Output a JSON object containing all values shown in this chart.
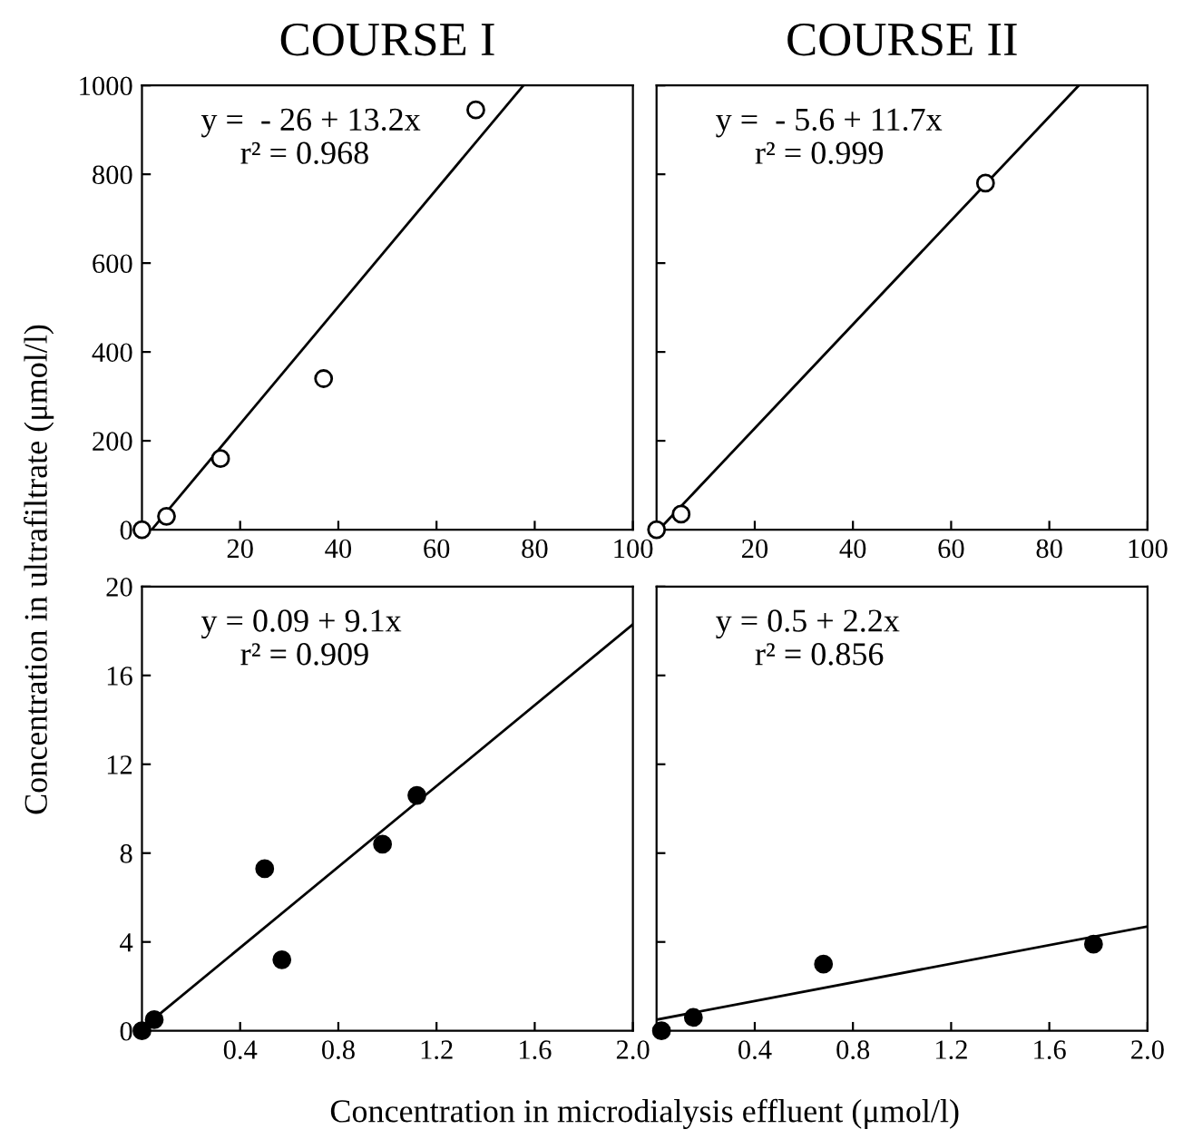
{
  "chart_data": [
    {
      "type": "scatter",
      "title": "COURSE I",
      "ylabel": "Concentration in ultrafiltrate (μmol/l)",
      "xlim": [
        0,
        100
      ],
      "ylim": [
        0,
        1000
      ],
      "xticks": [
        20,
        40,
        60,
        80,
        100
      ],
      "yticks": [
        0,
        200,
        400,
        600,
        800,
        1000
      ],
      "annotations": [
        "y =  - 26 + 13.2x",
        "r² = 0.968"
      ],
      "series": [
        {
          "color": "#ffffff",
          "marker": "circle",
          "x": [
            0,
            5,
            16,
            37,
            68
          ],
          "values": [
            0,
            30,
            160,
            340,
            945
          ]
        },
        {
          "type": "line",
          "color": "#000000",
          "x": [
            2,
            77.7
          ],
          "values": [
            0,
            1000
          ]
        }
      ]
    },
    {
      "type": "scatter",
      "title": "COURSE II",
      "tick_labels": "x",
      "xlim": [
        0,
        100
      ],
      "ylim": [
        0,
        1000
      ],
      "xticks": [
        20,
        40,
        60,
        80,
        100
      ],
      "yticks": [
        0,
        200,
        400,
        600,
        800,
        1000
      ],
      "annotations": [
        "y =  - 5.6 + 11.7x",
        "r² = 0.999"
      ],
      "series": [
        {
          "color": "#ffffff",
          "marker": "circle",
          "x": [
            0,
            5,
            67
          ],
          "values": [
            0,
            35,
            780
          ]
        },
        {
          "type": "line",
          "color": "#000000",
          "x": [
            0.5,
            86
          ],
          "values": [
            0,
            1000
          ]
        }
      ]
    },
    {
      "type": "scatter",
      "xlabel": "Concentration in microdialysis effluent (μmol/l)",
      "xlim": [
        0,
        2.0
      ],
      "ylim": [
        0,
        20
      ],
      "xticks": [
        0.4,
        0.8,
        1.2,
        1.6,
        {
          "value": 2.0,
          "label": "2.0"
        }
      ],
      "yticks": [
        0,
        4,
        8,
        12,
        16,
        20
      ],
      "annotations": [
        "y = 0.09 + 9.1x",
        "r² = 0.909"
      ],
      "series": [
        {
          "color": "#000000",
          "marker": "circle",
          "x": [
            0,
            0.05,
            0.5,
            0.57,
            0.98,
            1.12
          ],
          "values": [
            0,
            0.5,
            7.3,
            3.2,
            8.4,
            10.6
          ]
        },
        {
          "type": "line",
          "color": "#000000",
          "x": [
            0,
            2.0
          ],
          "values": [
            0.1,
            18.3
          ]
        }
      ]
    },
    {
      "type": "scatter",
      "tick_labels": "x",
      "xlim": [
        0,
        2.0
      ],
      "ylim": [
        0,
        20
      ],
      "xticks": [
        0.4,
        0.8,
        1.2,
        1.6,
        {
          "value": 2.0,
          "label": "2.0"
        }
      ],
      "yticks": [
        0,
        4,
        8,
        12,
        16,
        20
      ],
      "annotations": [
        "y = 0.5 + 2.2x",
        "r² = 0.856"
      ],
      "series": [
        {
          "color": "#000000",
          "marker": "circle",
          "x": [
            0.02,
            0.15,
            0.68,
            1.78
          ],
          "values": [
            0,
            0.6,
            3.0,
            3.9
          ]
        },
        {
          "type": "line",
          "color": "#000000",
          "x": [
            0,
            2.0
          ],
          "values": [
            0.5,
            4.7
          ]
        }
      ]
    }
  ]
}
